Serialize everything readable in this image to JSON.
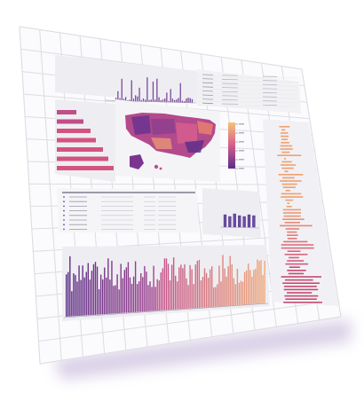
{
  "colors": {
    "page_bg": "#ffffff",
    "panel_bg": "#eeeef2",
    "panel_edge": "#e2e2e8",
    "grid_line": "#dcdce2",
    "bar_purple": "#6a4aa6",
    "bar_magenta": "#c04e8a",
    "bar_orange": "#f0a070",
    "map_dark": "#5c2d86",
    "map_mid": "#b0468a",
    "map_light": "#e88a6a",
    "text_faint": "#9a9aa8",
    "shadow": "#b9a8d2"
  },
  "panels": {
    "top_histogram": {
      "name": "top-histogram-panel",
      "type": "bar chart"
    },
    "map": {
      "name": "choropleth-map-panel",
      "type": "map"
    },
    "map_colorbar": {
      "name": "map-colorbar",
      "type": "legend"
    },
    "hbar": {
      "name": "horizontal-bar-panel",
      "type": "bar chart"
    },
    "table_top_right": {
      "name": "data-table-top-right",
      "type": "table"
    },
    "table_middle": {
      "name": "data-table-middle",
      "type": "table"
    },
    "small_bar": {
      "name": "small-bar-chart-panel",
      "type": "bar chart"
    },
    "right_bars": {
      "name": "right-side-bar-panel",
      "type": "bar chart"
    },
    "main_bar": {
      "name": "main-bar-chart-panel",
      "type": "bar chart"
    }
  }
}
